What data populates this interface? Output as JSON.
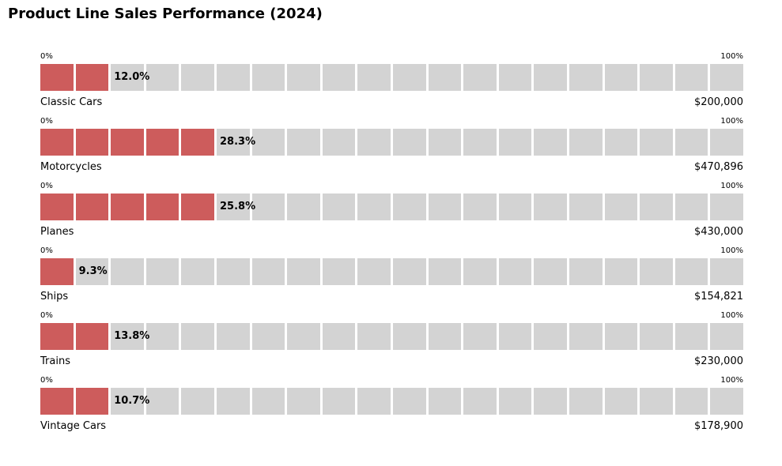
{
  "colors": {
    "filled": "#cd5c5c",
    "empty": "#d3d3d3"
  },
  "chart_data": {
    "type": "bar",
    "title": "Product Line Sales Performance (2024)",
    "style": "segmented progress bars, 20 segments per bar",
    "scale_min_label": "0%",
    "scale_max_label": "100%",
    "segments": 20,
    "categories": [
      "Classic Cars",
      "Motorcycles",
      "Planes",
      "Ships",
      "Trains",
      "Vintage Cars"
    ],
    "values": [
      200000,
      470896,
      430000,
      154821,
      230000,
      178900
    ],
    "value_labels": [
      "$200,000",
      "$470,896",
      "$430,000",
      "$154,821",
      "$230,000",
      "$178,900"
    ],
    "percentages": [
      12.0,
      28.3,
      25.8,
      9.3,
      13.8,
      10.7
    ],
    "percentage_labels": [
      "12.0%",
      "28.3%",
      "25.8%",
      "9.3%",
      "13.8%",
      "10.7%"
    ],
    "filled_segments": [
      2,
      5,
      5,
      1,
      2,
      2
    ]
  }
}
